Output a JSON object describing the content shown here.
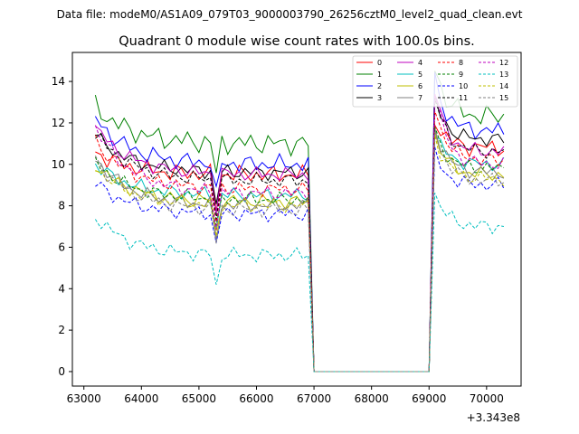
{
  "chart_data": {
    "type": "line",
    "suptitle": "Data file: modeM0/AS1A09_079T03_9000003790_26256cztM0_level2_quad_clean.evt",
    "title": "Quadrant 0 module wise count rates with 100.0s bins.",
    "xlabel": "",
    "ylabel": "",
    "x_offset_label": "+3.343e8",
    "xlim": [
      62800,
      70600
    ],
    "ylim": [
      -0.7,
      15.4
    ],
    "xticks": [
      "63000",
      "64000",
      "65000",
      "66000",
      "67000",
      "68000",
      "69000",
      "70000"
    ],
    "yticks": [
      "0",
      "2",
      "4",
      "6",
      "8",
      "10",
      "12",
      "14"
    ],
    "legend_position": "top-right",
    "x_start": 63200,
    "x_step": 100,
    "n_points": 72,
    "series": [
      {
        "name": "0",
        "color": "#ff0000",
        "dash": "solid",
        "base": 9.5,
        "late": 10.8,
        "start": 10.6,
        "amp": 0.5
      },
      {
        "name": "1",
        "color": "#008000",
        "dash": "solid",
        "base": 11.0,
        "late": 12.3,
        "start": 12.8,
        "amp": 0.6
      },
      {
        "name": "2",
        "color": "#0000ff",
        "dash": "solid",
        "base": 10.0,
        "late": 11.6,
        "start": 12.2,
        "amp": 0.5
      },
      {
        "name": "3",
        "color": "#000000",
        "dash": "solid",
        "base": 9.6,
        "late": 11.2,
        "start": 11.4,
        "amp": 0.4
      },
      {
        "name": "4",
        "color": "#bf00bf",
        "dash": "solid",
        "base": 9.5,
        "late": 10.6,
        "start": 11.8,
        "amp": 0.4
      },
      {
        "name": "5",
        "color": "#00bfbf",
        "dash": "solid",
        "base": 8.5,
        "late": 10.0,
        "start": 10.0,
        "amp": 0.4
      },
      {
        "name": "6",
        "color": "#bfbf00",
        "dash": "solid",
        "base": 8.2,
        "late": 9.5,
        "start": 10.0,
        "amp": 0.4
      },
      {
        "name": "7",
        "color": "#808080",
        "dash": "solid",
        "base": 8.0,
        "late": 9.6,
        "start": 10.3,
        "amp": 0.4
      },
      {
        "name": "8",
        "color": "#ff0000",
        "dash": "dashed",
        "base": 8.8,
        "late": 10.2,
        "start": 11.1,
        "amp": 0.4
      },
      {
        "name": "9",
        "color": "#008000",
        "dash": "dashed",
        "base": 8.3,
        "late": 9.8,
        "start": 10.1,
        "amp": 0.4
      },
      {
        "name": "10",
        "color": "#0000ff",
        "dash": "dashed",
        "base": 7.6,
        "late": 9.0,
        "start": 9.1,
        "amp": 0.4
      },
      {
        "name": "11",
        "color": "#000000",
        "dash": "dashed",
        "base": 9.2,
        "late": 10.6,
        "start": 11.5,
        "amp": 0.4
      },
      {
        "name": "12",
        "color": "#bf00bf",
        "dash": "dashed",
        "base": 8.6,
        "late": 10.0,
        "start": 11.8,
        "amp": 0.4
      },
      {
        "name": "13",
        "color": "#00bfbf",
        "dash": "dashed",
        "base": 5.6,
        "late": 7.0,
        "start": 7.5,
        "amp": 0.4
      },
      {
        "name": "14",
        "color": "#bfbf00",
        "dash": "dashed",
        "base": 8.0,
        "late": 9.3,
        "start": 9.9,
        "amp": 0.4
      },
      {
        "name": "15",
        "color": "#808080",
        "dash": "dashed",
        "base": 7.8,
        "late": 9.2,
        "start": 10.2,
        "amp": 0.4
      }
    ]
  }
}
